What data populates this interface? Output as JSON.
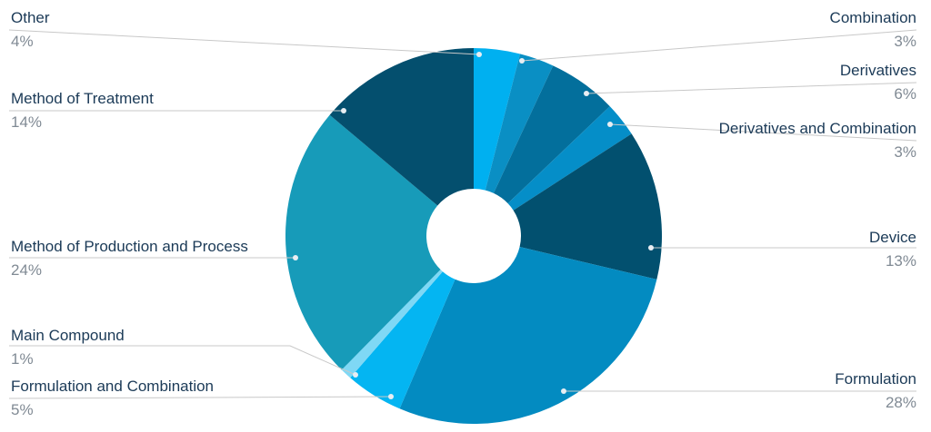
{
  "chart_data": {
    "type": "pie",
    "donut": true,
    "slices": [
      {
        "name": "Other",
        "value": 4,
        "label": "4%",
        "color": "#00b0f0"
      },
      {
        "name": "Combination",
        "value": 3,
        "label": "3%",
        "color": "#0a8fc4"
      },
      {
        "name": "Derivatives",
        "value": 6,
        "label": "6%",
        "color": "#036f9c"
      },
      {
        "name": "Derivatives and Combination",
        "value": 3,
        "label": "3%",
        "color": "#058ec8"
      },
      {
        "name": "Device",
        "value": 13,
        "label": "13%",
        "color": "#02506f"
      },
      {
        "name": "Formulation",
        "value": 28,
        "label": "28%",
        "color": "#038bc1"
      },
      {
        "name": "Formulation and Combination",
        "value": 5,
        "label": "5%",
        "color": "#04b5f2"
      },
      {
        "name": "Main Compound",
        "value": 1,
        "label": "1%",
        "color": "#7fd8f5"
      },
      {
        "name": "Method of Production and Process",
        "value": 24,
        "label": "24%",
        "color": "#179bb9"
      },
      {
        "name": "Method of Treatment",
        "value": 14,
        "label": "14%",
        "color": "#044f6e"
      }
    ],
    "legend": "callout labels",
    "leader_line_color": "#c8c8c8"
  }
}
